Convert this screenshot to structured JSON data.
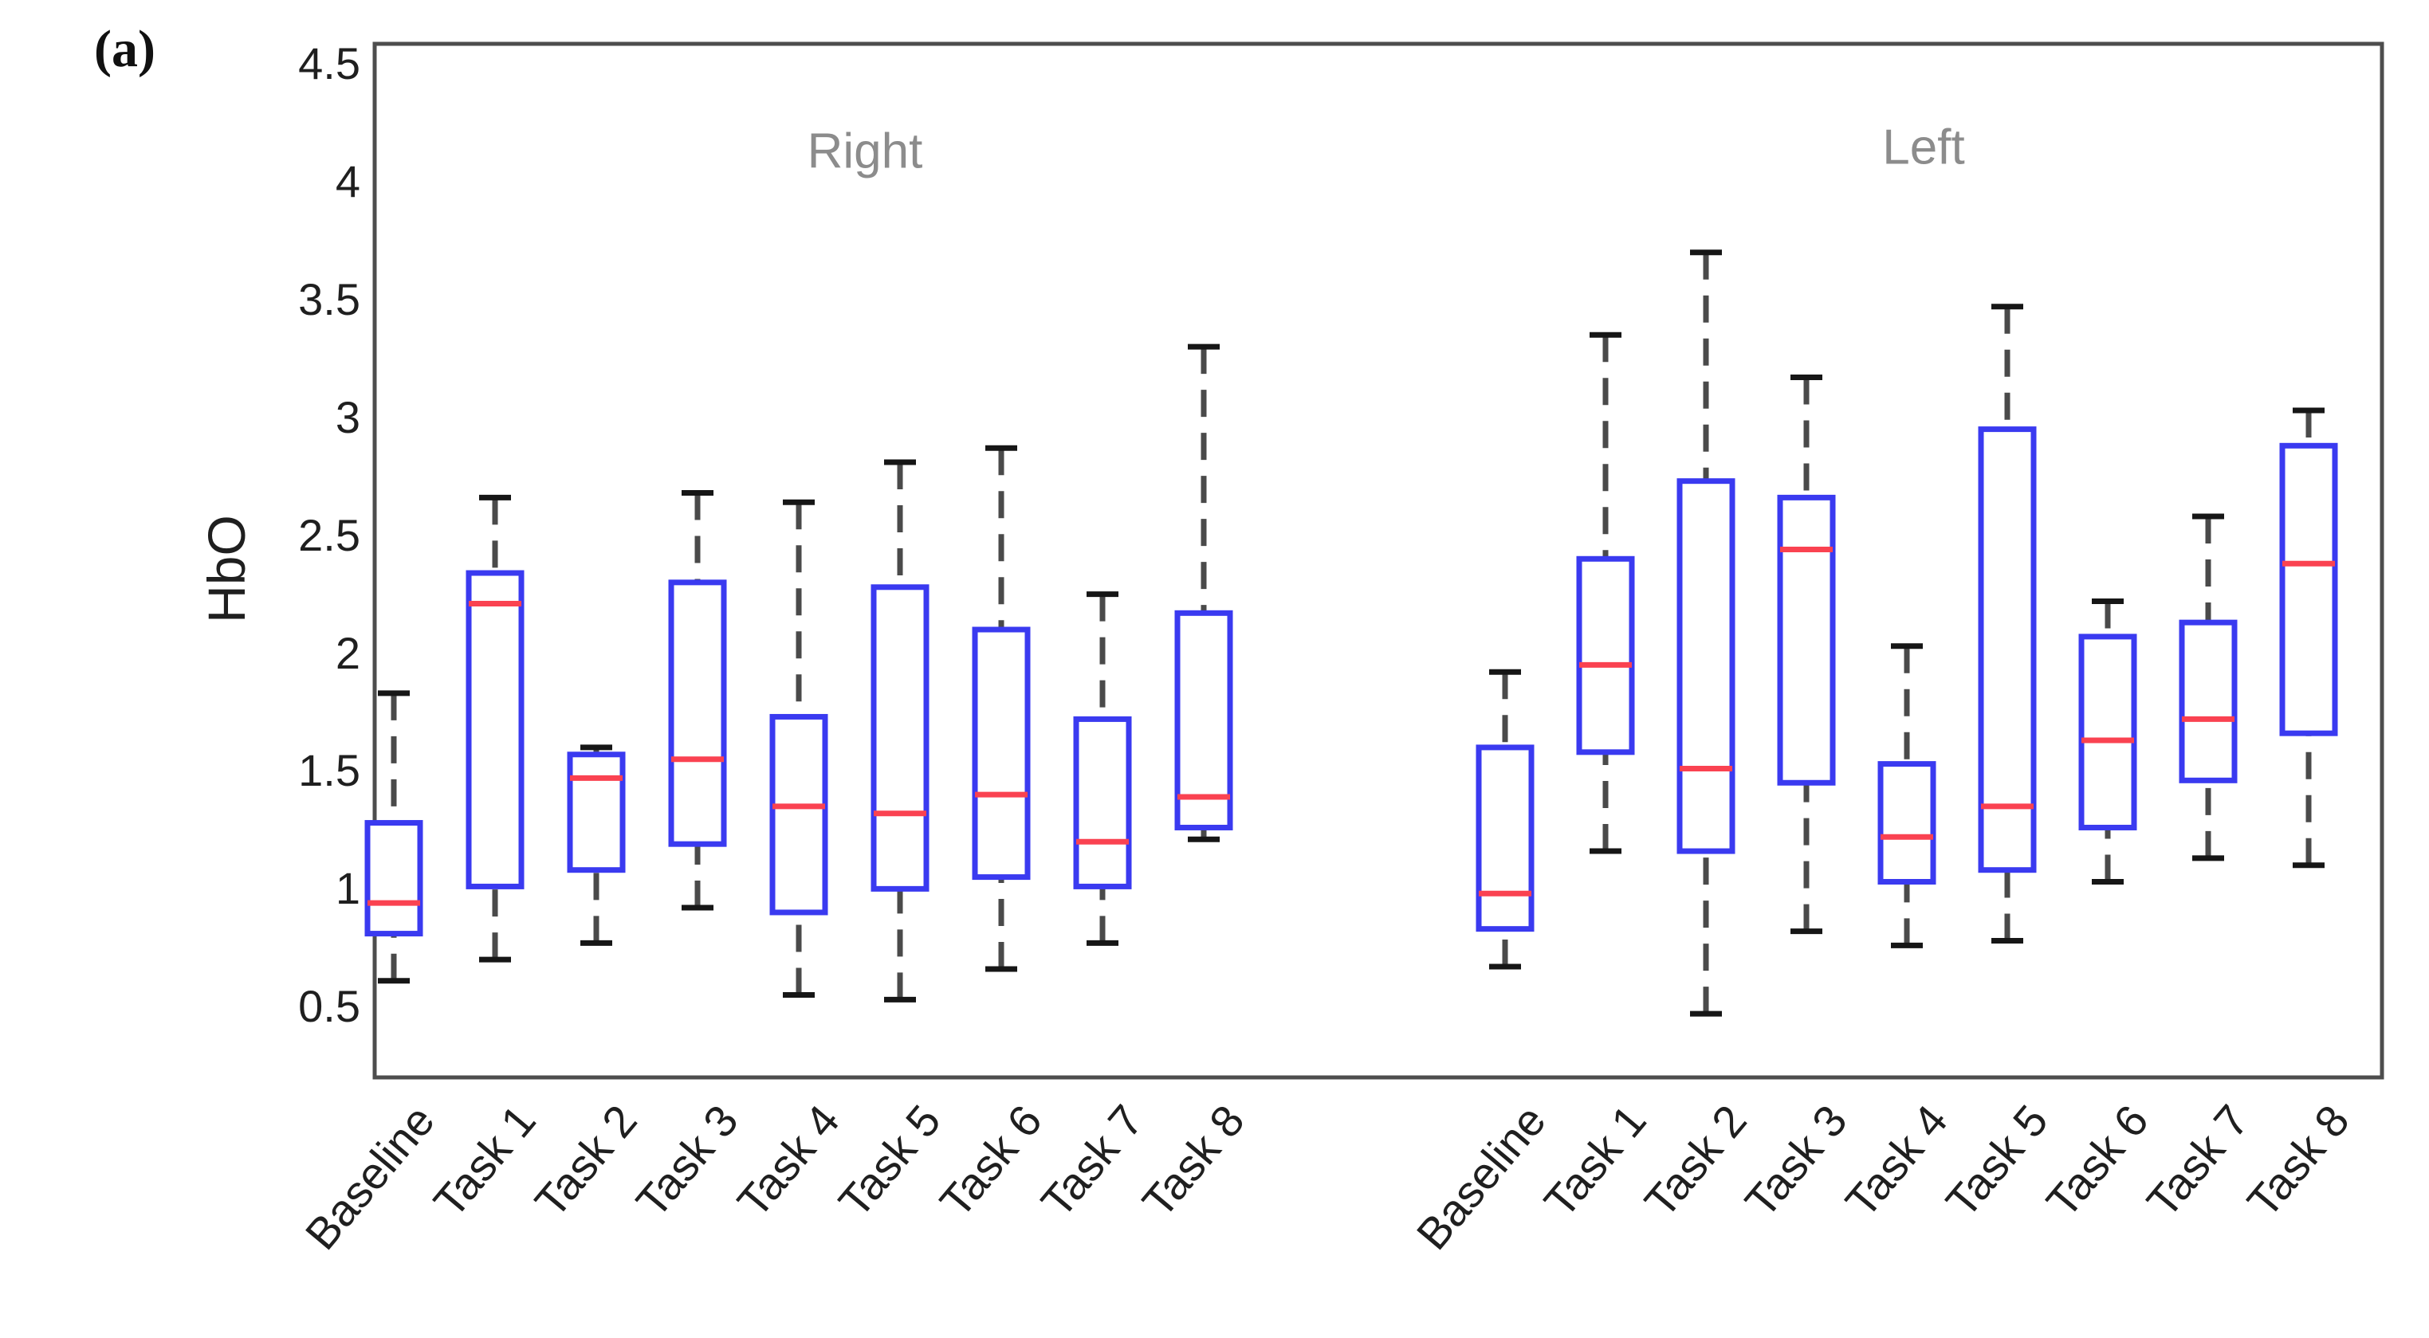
{
  "panel_label": "(a)",
  "chart_data": {
    "type": "boxplot",
    "title": "",
    "ylabel": "HbO",
    "xlabel": "",
    "ylim": [
      0.2,
      4.585
    ],
    "yticks": [
      0.5,
      1,
      1.5,
      2,
      2.5,
      3,
      3.5,
      4,
      4.5
    ],
    "grid": false,
    "legend": null,
    "categories": [
      "Baseline",
      "Task 1",
      "Task 2",
      "Task 3",
      "Task 4",
      "Task 5",
      "Task 6",
      "Task 7",
      "Task 8"
    ],
    "groups": [
      {
        "label": "Right",
        "boxes": [
          {
            "category": "Baseline",
            "whislo": 0.61,
            "q1": 0.81,
            "median": 0.94,
            "q3": 1.28,
            "whishi": 1.83
          },
          {
            "category": "Task 1",
            "whislo": 0.7,
            "q1": 1.01,
            "median": 2.21,
            "q3": 2.34,
            "whishi": 2.66
          },
          {
            "category": "Task 2",
            "whislo": 0.77,
            "q1": 1.08,
            "median": 1.47,
            "q3": 1.57,
            "whishi": 1.6
          },
          {
            "category": "Task 3",
            "whislo": 0.92,
            "q1": 1.19,
            "median": 1.55,
            "q3": 2.3,
            "whishi": 2.68
          },
          {
            "category": "Task 4",
            "whislo": 0.55,
            "q1": 0.9,
            "median": 1.35,
            "q3": 1.73,
            "whishi": 2.64
          },
          {
            "category": "Task 5",
            "whislo": 0.53,
            "q1": 1.0,
            "median": 1.32,
            "q3": 2.28,
            "whishi": 2.81
          },
          {
            "category": "Task 6",
            "whislo": 0.66,
            "q1": 1.05,
            "median": 1.4,
            "q3": 2.1,
            "whishi": 2.87
          },
          {
            "category": "Task 7",
            "whislo": 0.77,
            "q1": 1.01,
            "median": 1.2,
            "q3": 1.72,
            "whishi": 2.25
          },
          {
            "category": "Task 8",
            "whislo": 1.21,
            "q1": 1.26,
            "median": 1.39,
            "q3": 2.17,
            "whishi": 3.3
          }
        ]
      },
      {
        "label": "Left",
        "boxes": [
          {
            "category": "Baseline",
            "whislo": 0.67,
            "q1": 0.83,
            "median": 0.98,
            "q3": 1.6,
            "whishi": 1.92
          },
          {
            "category": "Task 1",
            "whislo": 1.16,
            "q1": 1.58,
            "median": 1.95,
            "q3": 2.4,
            "whishi": 3.35
          },
          {
            "category": "Task 2",
            "whislo": 0.47,
            "q1": 1.16,
            "median": 1.51,
            "q3": 2.73,
            "whishi": 3.7
          },
          {
            "category": "Task 3",
            "whislo": 0.82,
            "q1": 1.45,
            "median": 2.44,
            "q3": 2.66,
            "whishi": 3.17
          },
          {
            "category": "Task 4",
            "whislo": 0.76,
            "q1": 1.03,
            "median": 1.22,
            "q3": 1.53,
            "whishi": 2.03
          },
          {
            "category": "Task 5",
            "whislo": 0.78,
            "q1": 1.08,
            "median": 1.35,
            "q3": 2.95,
            "whishi": 3.47
          },
          {
            "category": "Task 6",
            "whislo": 1.03,
            "q1": 1.26,
            "median": 1.63,
            "q3": 2.07,
            "whishi": 2.22
          },
          {
            "category": "Task 7",
            "whislo": 1.13,
            "q1": 1.46,
            "median": 1.72,
            "q3": 2.13,
            "whishi": 2.58
          },
          {
            "category": "Task 8",
            "whislo": 1.1,
            "q1": 1.66,
            "median": 2.38,
            "q3": 2.88,
            "whishi": 3.03
          }
        ]
      }
    ],
    "style": {
      "box_color": "#3a3af0",
      "median_color": "#fa4251",
      "whisker_color": "#4a4a4a",
      "cap_color": "#161616",
      "axis_color": "#4d4d4d",
      "text_color": "#1f1f1f",
      "group_label_color": "#8c8c8c",
      "background": "#ffffff"
    }
  }
}
